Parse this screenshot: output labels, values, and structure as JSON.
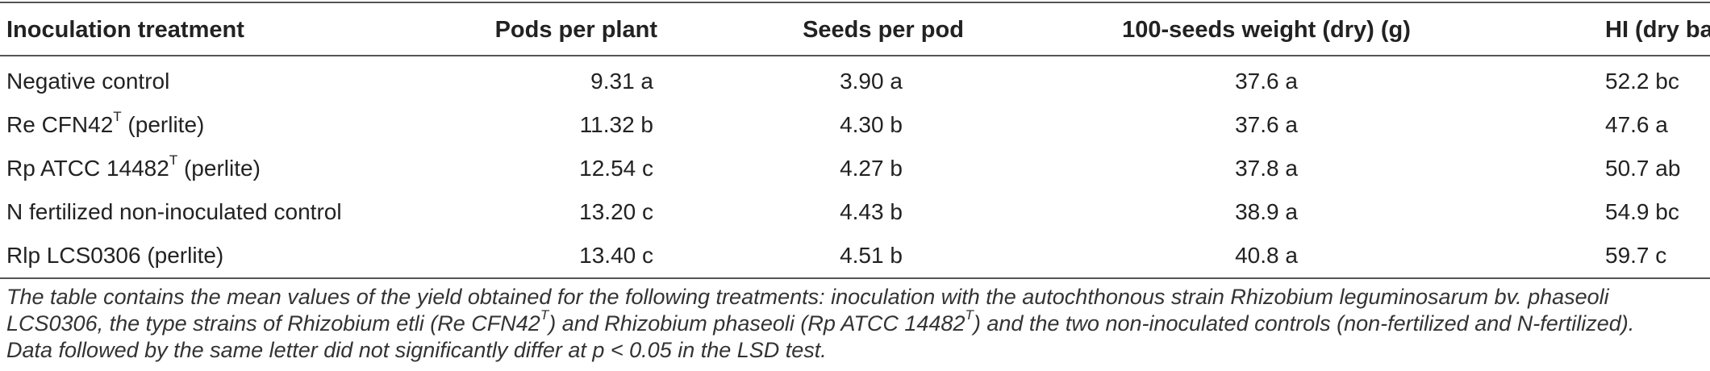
{
  "table": {
    "headers": [
      "Inoculation treatment",
      "Pods per plant",
      "Seeds per pod",
      "100-seeds weight (dry) (g)",
      "HI (dry basis)"
    ],
    "rows": [
      {
        "treatment": "Negative control",
        "sup": "",
        "suffix": "",
        "pods": "9.31 a",
        "seeds": "3.90 a",
        "weight": "37.6 a",
        "hi": "52.2 bc"
      },
      {
        "treatment": "Re CFN42",
        "sup": "T",
        "suffix": " (perlite)",
        "pods": "11.32 b",
        "seeds": "4.30 b",
        "weight": "37.6 a",
        "hi": "47.6 a"
      },
      {
        "treatment": "Rp ATCC 14482",
        "sup": "T",
        "suffix": " (perlite)",
        "pods": "12.54 c",
        "seeds": "4.27 b",
        "weight": "37.8 a",
        "hi": "50.7 ab"
      },
      {
        "treatment": "N fertilized non-inoculated control",
        "sup": "",
        "suffix": "",
        "pods": "13.20 c",
        "seeds": "4.43 b",
        "weight": "38.9 a",
        "hi": "54.9 bc"
      },
      {
        "treatment": "Rlp LCS0306 (perlite)",
        "sup": "",
        "suffix": "",
        "pods": "13.40 c",
        "seeds": "4.51 b",
        "weight": "40.8 a",
        "hi": "59.7 c"
      }
    ]
  },
  "caption": {
    "line1": "The table contains the mean values of the yield obtained for the following treatments: inoculation with the autochthonous strain Rhizobium leguminosarum bv. phaseoli",
    "line2a": "LCS0306, the type strains of Rhizobium etli (Re CFN42",
    "line2sup1": "T",
    "line2b": ") and Rhizobium phaseoli (Rp ATCC 14482",
    "line2sup2": "T",
    "line2c": ") and the two non-inoculated controls (non-fertilized and N-fertilized).",
    "line3": "Data followed by the same letter did not significantly differ at p < 0.05 in the LSD test."
  }
}
